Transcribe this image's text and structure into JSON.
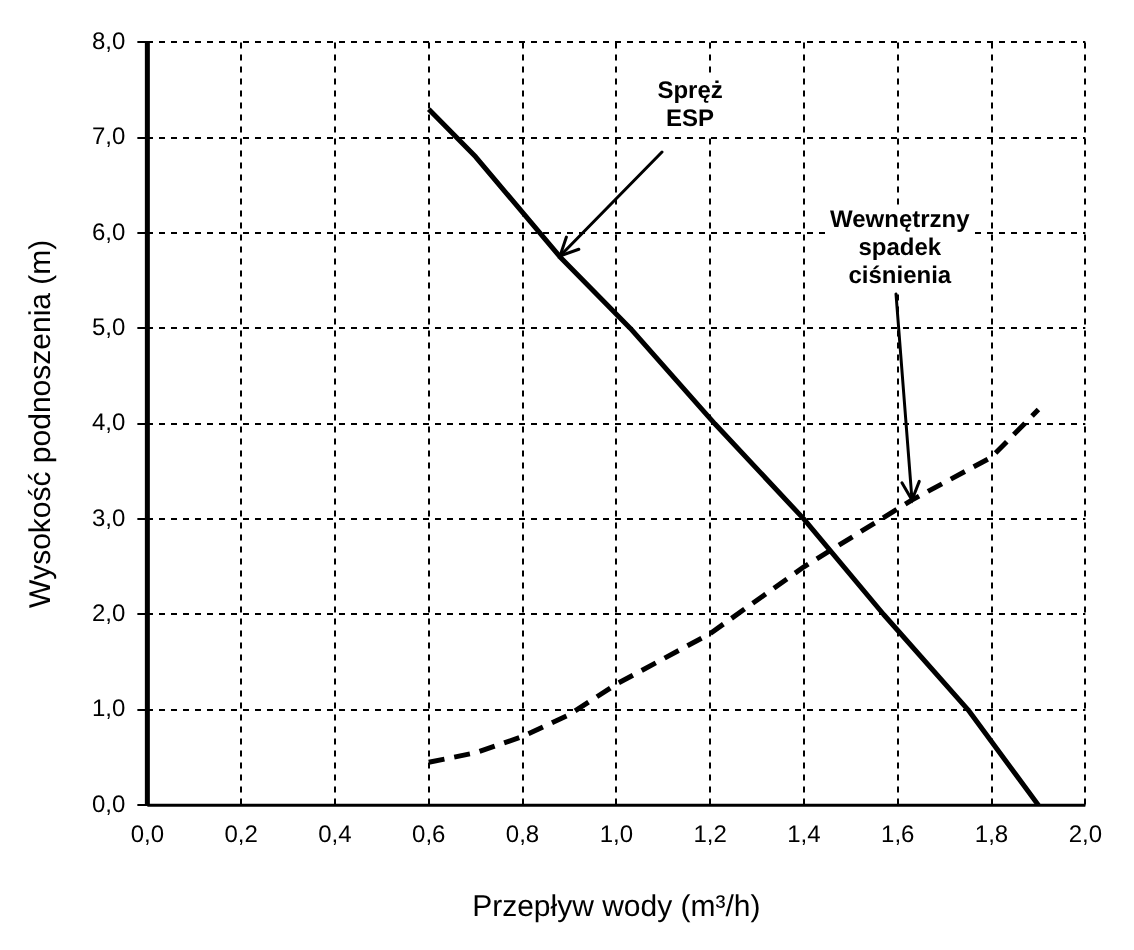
{
  "chart_data": {
    "type": "line",
    "xlabel": "Przepływ wody (m³/h)",
    "ylabel": "Wysokość podnoszenia (m)",
    "xlim": [
      0,
      2
    ],
    "ylim": [
      0,
      8
    ],
    "xticks": [
      {
        "value": 0,
        "label": "0,0"
      },
      {
        "value": 0.2,
        "label": "0,2"
      },
      {
        "value": 0.4,
        "label": "0,4"
      },
      {
        "value": 0.6,
        "label": "0,6"
      },
      {
        "value": 0.8,
        "label": "0,8"
      },
      {
        "value": 1,
        "label": "1,0"
      },
      {
        "value": 1.2,
        "label": "1,2"
      },
      {
        "value": 1.4,
        "label": "1,4"
      },
      {
        "value": 1.6,
        "label": "1,6"
      },
      {
        "value": 1.8,
        "label": "1,8"
      },
      {
        "value": 2,
        "label": "2,0"
      }
    ],
    "yticks": [
      {
        "value": 0,
        "label": "0,0"
      },
      {
        "value": 1,
        "label": "1,0"
      },
      {
        "value": 2,
        "label": "2,0"
      },
      {
        "value": 3,
        "label": "3,0"
      },
      {
        "value": 4,
        "label": "4,0"
      },
      {
        "value": 5,
        "label": "5,0"
      },
      {
        "value": 6,
        "label": "6,0"
      },
      {
        "value": 7,
        "label": "7,0"
      },
      {
        "value": 8,
        "label": "8,0"
      }
    ],
    "grid": true,
    "legend": false,
    "marker": "none",
    "series": [
      {
        "color": "#000000",
        "line_style": "solid",
        "x": [
          0.6,
          0.7,
          0.88,
          1.03,
          1.21,
          1.4,
          1.57,
          1.75,
          1.9
        ],
        "values": [
          7.3,
          6.8,
          5.75,
          5.0,
          4.0,
          3.0,
          2.0,
          1.0,
          0.0
        ]
      },
      {
        "color": "#000000",
        "line_style": "dashed",
        "x": [
          0.6,
          0.7,
          0.8,
          0.9,
          1.0,
          1.2,
          1.4,
          1.63,
          1.8,
          1.9
        ],
        "values": [
          0.45,
          0.55,
          0.72,
          0.95,
          1.27,
          1.8,
          2.5,
          3.2,
          3.65,
          4.15
        ]
      }
    ],
    "annotations": [
      {
        "text": "Spręż ESP",
        "x": 0.88,
        "y": 5.75
      },
      {
        "text": "Wewnętrzny spadek ciśnienia",
        "x": 1.63,
        "y": 3.2
      }
    ]
  }
}
